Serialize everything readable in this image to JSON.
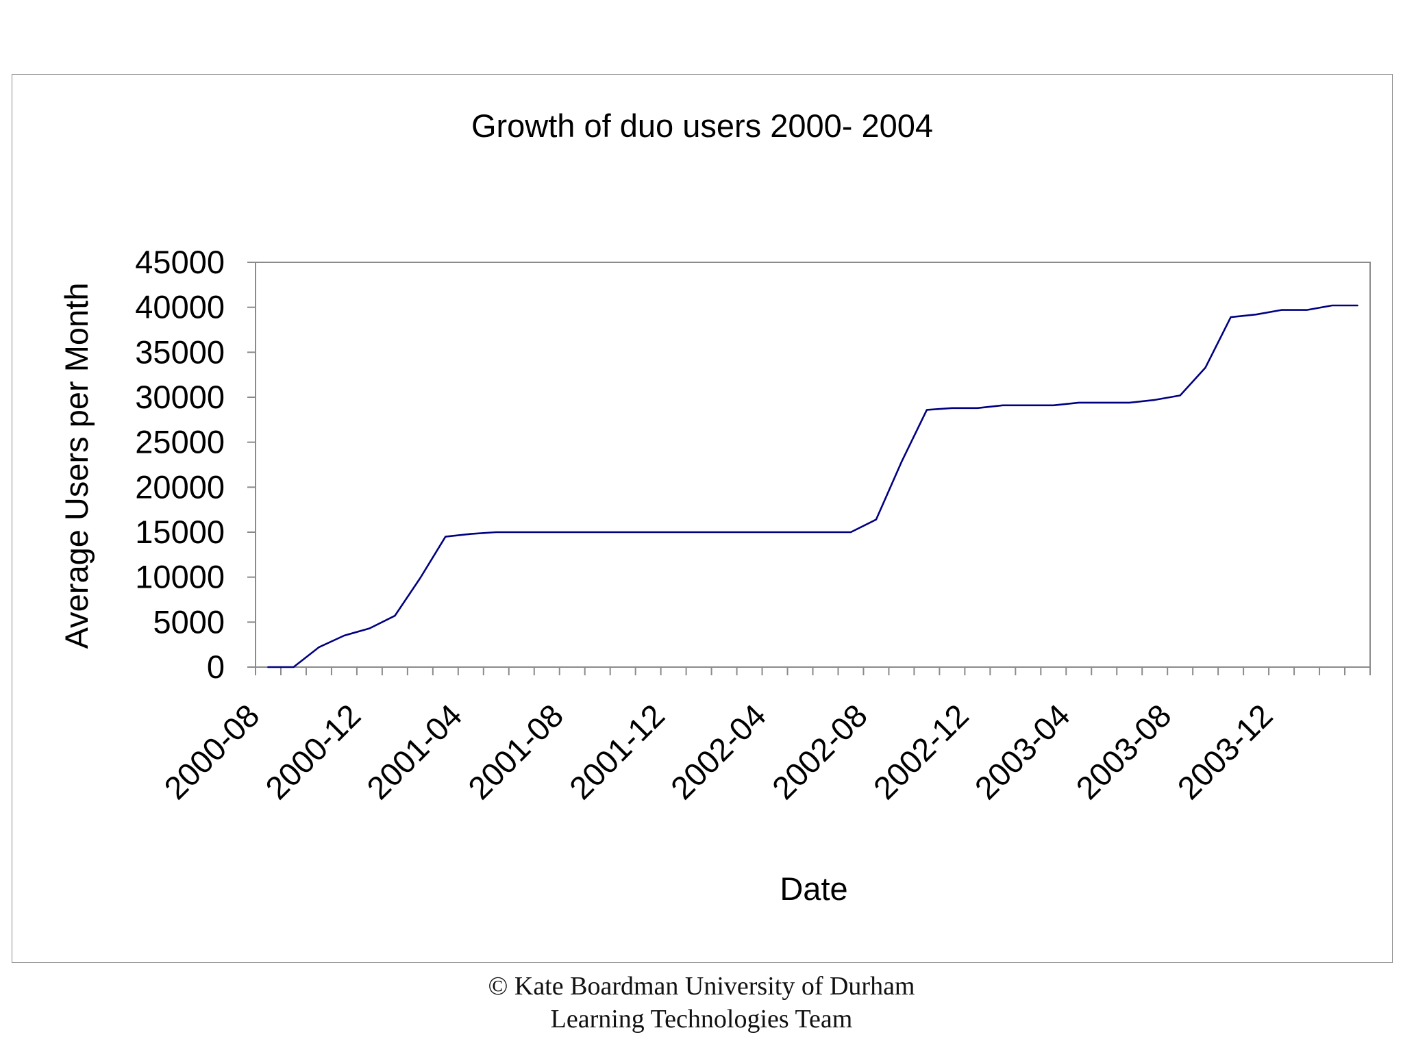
{
  "chart_data": {
    "type": "line",
    "title": "Growth of duo users 2000- 2004",
    "xlabel": "Date",
    "ylabel": "Average Users per Month",
    "ylim": [
      0,
      45000
    ],
    "yticks": [
      0,
      5000,
      10000,
      15000,
      20000,
      25000,
      30000,
      35000,
      40000,
      45000
    ],
    "ytick_labels": [
      "0",
      "5000",
      "10000",
      "15000",
      "20000",
      "25000",
      "30000",
      "35000",
      "40000",
      "45000"
    ],
    "x_tick_labels": [
      "2000-08",
      "2000-12",
      "2001-04",
      "2001-08",
      "2001-12",
      "2002-04",
      "2002-08",
      "2002-12",
      "2003-04",
      "2003-08",
      "2003-12"
    ],
    "x_tick_label_every": 4,
    "grid": false,
    "line_color": "#000080",
    "series": [
      {
        "name": "Average Users per Month",
        "x": [
          "2000-08",
          "2000-09",
          "2000-10",
          "2000-11",
          "2000-12",
          "2001-01",
          "2001-02",
          "2001-03",
          "2001-04",
          "2001-05",
          "2001-06",
          "2001-07",
          "2001-08",
          "2001-09",
          "2001-10",
          "2001-11",
          "2001-12",
          "2002-01",
          "2002-02",
          "2002-03",
          "2002-04",
          "2002-05",
          "2002-06",
          "2002-07",
          "2002-08",
          "2002-09",
          "2002-10",
          "2002-11",
          "2002-12",
          "2003-01",
          "2003-02",
          "2003-03",
          "2003-04",
          "2003-05",
          "2003-06",
          "2003-07",
          "2003-08",
          "2003-09",
          "2003-10",
          "2003-11",
          "2003-12",
          "2004-01",
          "2004-02",
          "2004-03"
        ],
        "values": [
          0,
          0,
          2200,
          3500,
          4300,
          5700,
          9900,
          14500,
          14800,
          15000,
          15000,
          15000,
          15000,
          15000,
          15000,
          15000,
          15000,
          15000,
          15000,
          15000,
          15000,
          15000,
          15000,
          15000,
          16400,
          22800,
          28600,
          28800,
          28800,
          29100,
          29100,
          29100,
          29400,
          29400,
          29400,
          29700,
          30200,
          33300,
          38900,
          39200,
          39700,
          39700,
          40200,
          40200
        ]
      }
    ]
  },
  "footer": {
    "line1": "© Kate Boardman University of Durham",
    "line2": "Learning Technologies Team"
  }
}
